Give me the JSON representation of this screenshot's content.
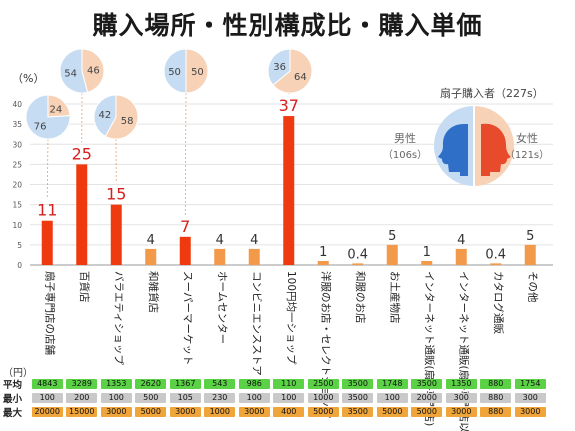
{
  "title": "購入場所・性別構成比・購入単価",
  "chart_data": {
    "type": "bar",
    "ylabel": "（%）",
    "ylim": [
      0,
      40
    ],
    "yticks": [
      0,
      5,
      10,
      15,
      20,
      25,
      30,
      35,
      40
    ],
    "grid": true,
    "categories": [
      "扇子専門店の店舗",
      "百貨店",
      "バラエティショップ",
      "和雑貨店",
      "スーパーマーケット",
      "ホームセンター",
      "コンビニエンスストア",
      "100円均一ショップ",
      "洋服のお店・セレクトショップ",
      "和服のお店",
      "お土産物店",
      "インターネット通販(扇子専門店)",
      "インターネット通販(扇子専門店以外)",
      "カタログ通販",
      "その他"
    ],
    "values": [
      11,
      25,
      15,
      4,
      7,
      4,
      4,
      37,
      1,
      0.4,
      5,
      1,
      4,
      0.4,
      5
    ],
    "value_labels": [
      "11",
      "25",
      "15",
      "4",
      "7",
      "4",
      "4",
      "37",
      "1",
      "0.4",
      "5",
      "1",
      "4",
      "0.4",
      "5"
    ],
    "highlight": [
      true,
      true,
      true,
      false,
      true,
      false,
      false,
      true,
      false,
      false,
      false,
      false,
      false,
      false,
      false
    ],
    "colors": {
      "highlight": "#ee3a0e",
      "normal": "#f2994a",
      "label_highlight": "#d81e1e",
      "label_normal": "#333333"
    },
    "pies": [
      {
        "category": "扇子専門店の店舗",
        "male": 76,
        "female": 24
      },
      {
        "category": "百貨店",
        "male": 54,
        "female": 46
      },
      {
        "category": "バラエティショップ",
        "male": 42,
        "female": 58
      },
      {
        "category": "スーパーマーケット",
        "male": 50,
        "female": 50
      },
      {
        "category": "100円均一ショップ",
        "male": 36,
        "female": 64
      }
    ],
    "pie_colors": {
      "male": "#c5dcf2",
      "female": "#f8d2b7"
    }
  },
  "gender": {
    "title": "扇子購入者（227s）",
    "male_label": "男性",
    "male_count": "（106s）",
    "female_label": "女性",
    "female_count": "（121s）",
    "male_color": "#2f6fc8",
    "female_color": "#e84a2c"
  },
  "table": {
    "unit": "（円）",
    "rows": [
      {
        "label": "平均",
        "values": [
          "4843",
          "3289",
          "1353",
          "2620",
          "1367",
          "543",
          "986",
          "110",
          "2500",
          "3500",
          "1748",
          "3500",
          "1350",
          "880",
          "1754"
        ]
      },
      {
        "label": "最小",
        "values": [
          "100",
          "200",
          "100",
          "500",
          "105",
          "230",
          "100",
          "100",
          "1000",
          "3500",
          "100",
          "2000",
          "300",
          "880",
          "300"
        ]
      },
      {
        "label": "最大",
        "values": [
          "20000",
          "15000",
          "3000",
          "5000",
          "3000",
          "1000",
          "3000",
          "400",
          "5000",
          "3500",
          "5000",
          "5000",
          "3000",
          "880",
          "3000"
        ]
      }
    ]
  }
}
